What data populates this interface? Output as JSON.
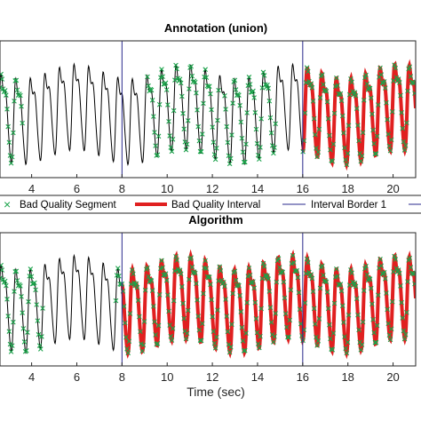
{
  "chart_data": [
    {
      "type": "line",
      "title": "Annotation (union)",
      "xlabel": "",
      "ylabel": "",
      "xlim": [
        2.6,
        21.0
      ],
      "ylim": [
        -1.0,
        1.0
      ],
      "xticks": [
        4,
        6,
        8,
        10,
        12,
        14,
        16,
        18,
        20
      ],
      "interval_borders": [
        8,
        16
      ],
      "signal_color": "#000000",
      "bad_segment_color": "#1aa34a",
      "bad_interval_color": "#e02020",
      "border_color": "#2a2a8c",
      "bad_quality_segments": [
        [
          2.6,
          3.6
        ],
        [
          9.1,
          12.3
        ],
        [
          12.5,
          14.8
        ],
        [
          16.0,
          21.0
        ]
      ],
      "bad_quality_intervals": [
        [
          16.0,
          21.0
        ]
      ]
    },
    {
      "type": "line",
      "title": "Algorithm",
      "xlabel": "Time (sec)",
      "ylabel": "",
      "xlim": [
        2.6,
        21.0
      ],
      "ylim": [
        -1.0,
        1.0
      ],
      "xticks": [
        4,
        6,
        8,
        10,
        12,
        14,
        16,
        18,
        20
      ],
      "interval_borders": [
        8,
        16
      ],
      "signal_color": "#000000",
      "bad_segment_color": "#1aa34a",
      "bad_interval_color": "#e02020",
      "border_color": "#2a2a8c",
      "bad_quality_segments": [
        [
          2.6,
          4.5
        ],
        [
          7.7,
          21.0
        ]
      ],
      "bad_quality_intervals": [
        [
          8.0,
          21.0
        ]
      ]
    }
  ],
  "legend": {
    "items": [
      {
        "label": "Bad Quality Segment",
        "kind": "marker",
        "color": "#1aa34a"
      },
      {
        "label": "Bad Quality Interval",
        "kind": "thick-line",
        "color": "#e02020"
      },
      {
        "label": "Interval Border 1",
        "kind": "thin-line",
        "color": "#2a2a8c"
      }
    ]
  }
}
